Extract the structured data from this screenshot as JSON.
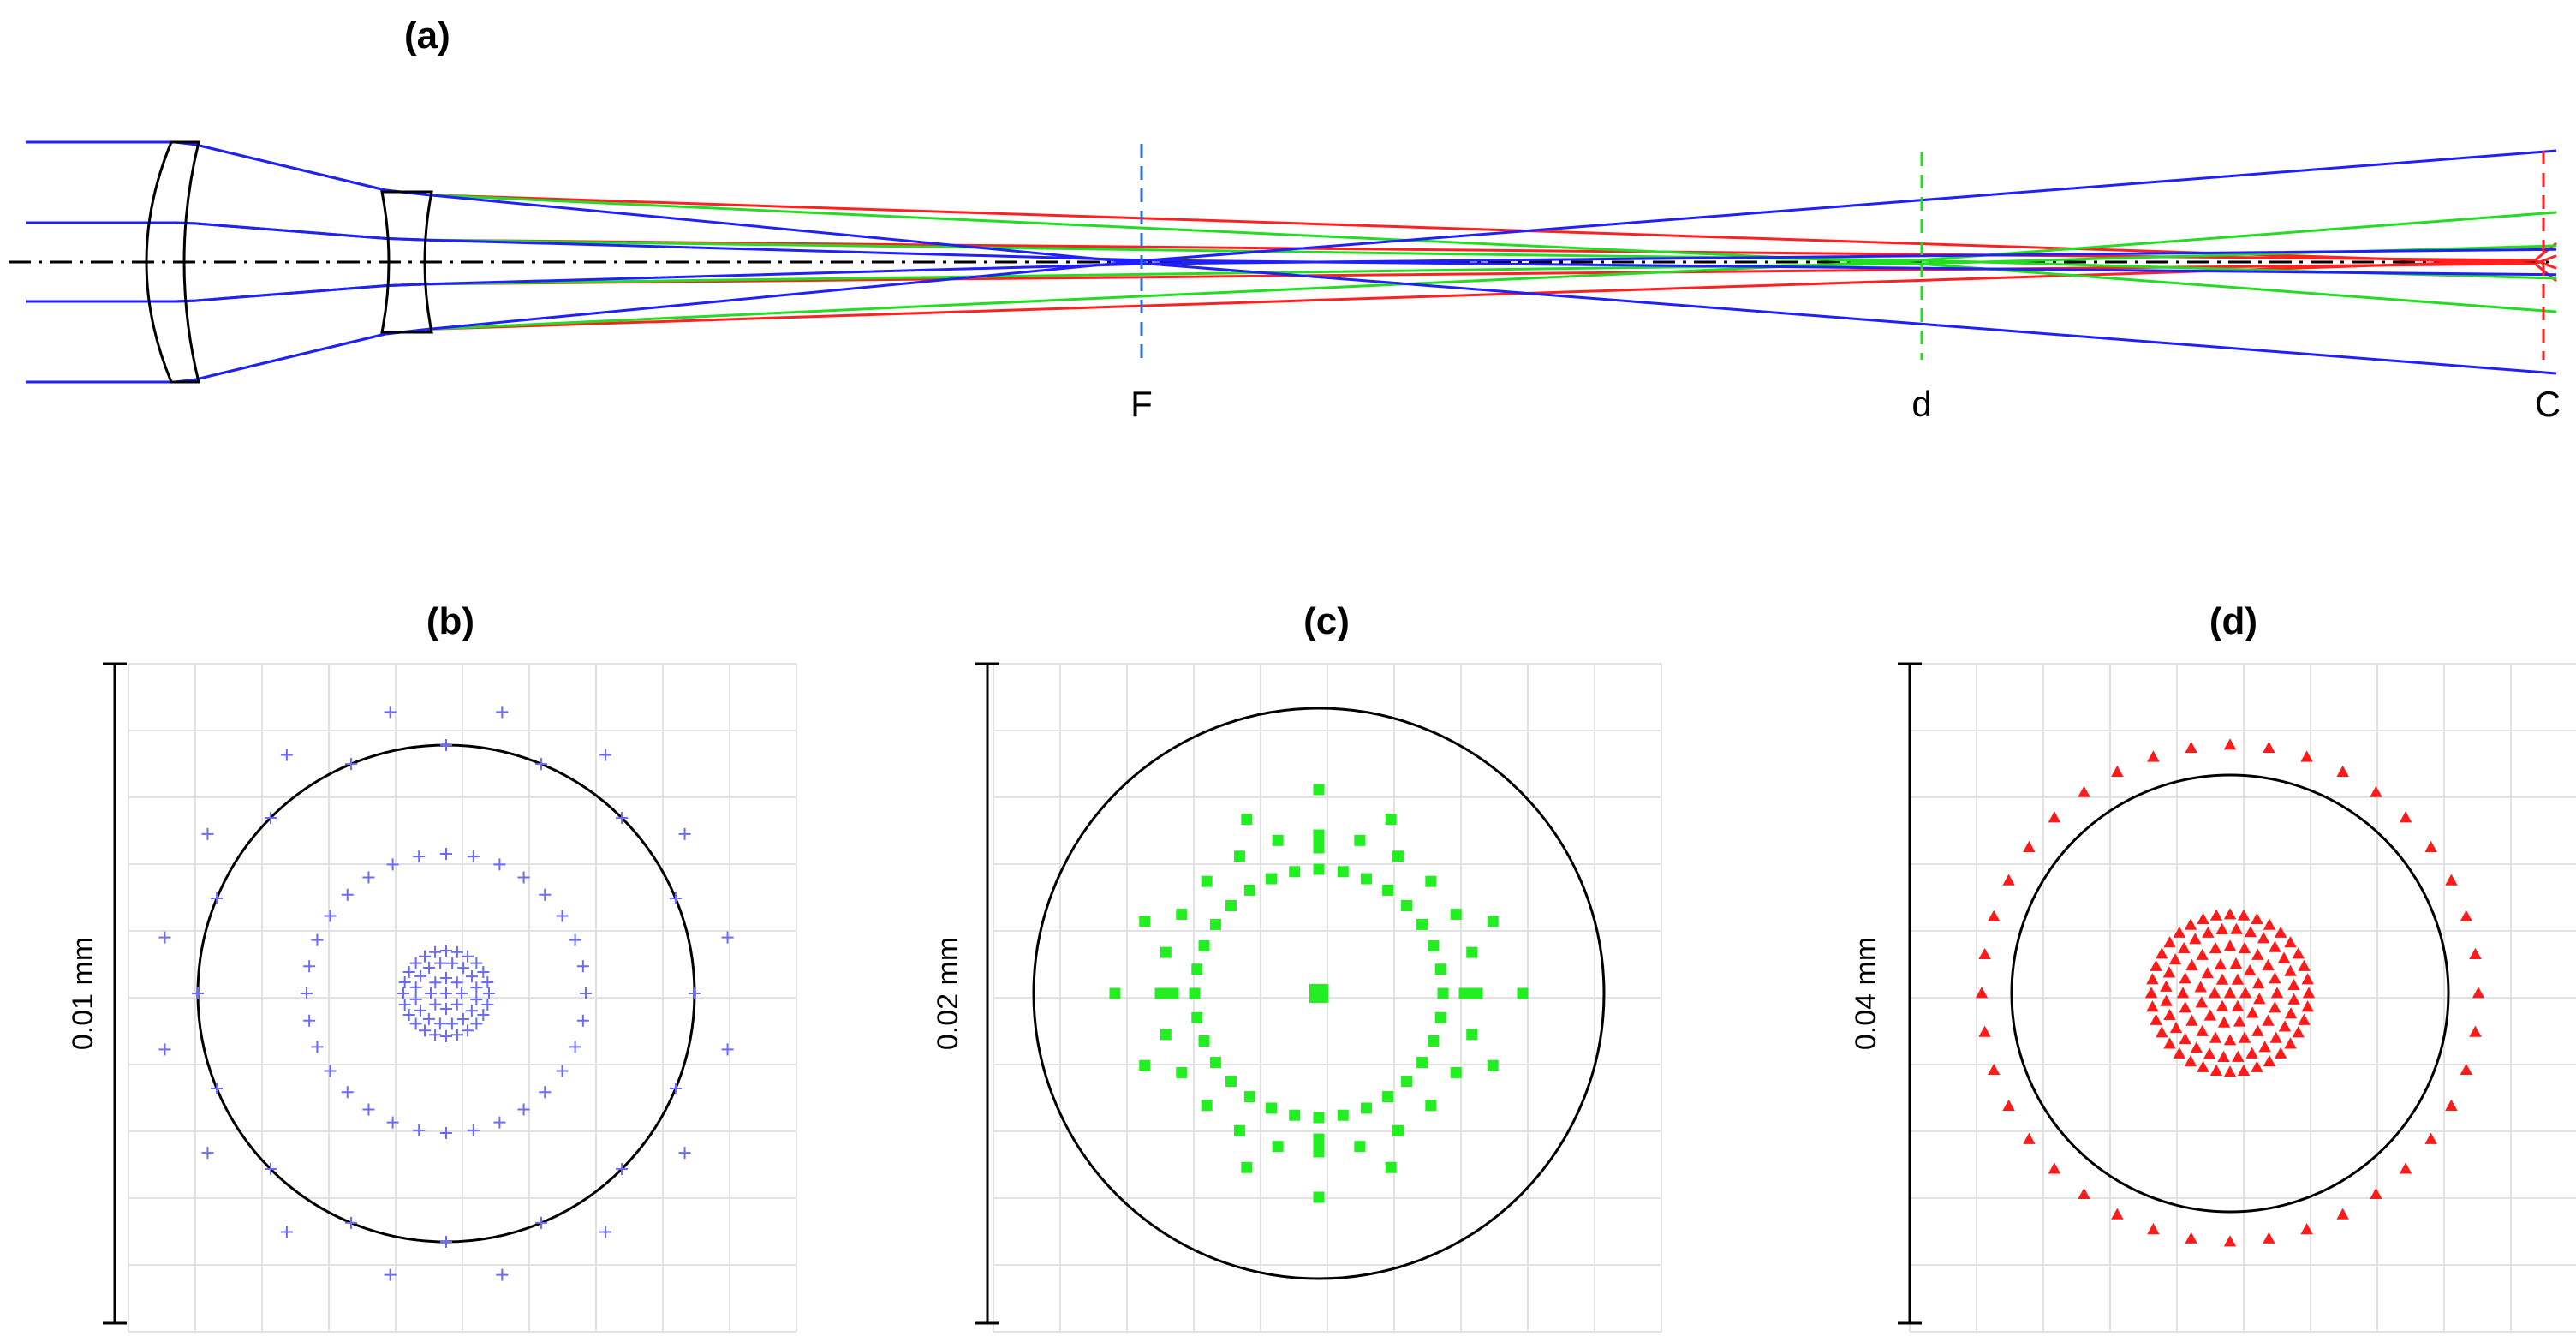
{
  "panels": {
    "a": {
      "label": "(a)",
      "planes": {
        "F": "F",
        "d": "d",
        "C": "C"
      },
      "ray_colors": {
        "F": "#1f1fff",
        "d": "#22dd22",
        "C": "#ff2020"
      },
      "plane_colors": {
        "F": "#2b6fd6",
        "d": "#22dd22",
        "C": "#ff2020"
      }
    },
    "b": {
      "label": "(b)",
      "scale": "0.01 mm",
      "color": "#6a6aff",
      "marker": "plus"
    },
    "c": {
      "label": "(c)",
      "scale": "0.02 mm",
      "color": "#22ee22",
      "marker": "square"
    },
    "d": {
      "label": "(d)",
      "scale": "0.04 mm",
      "color": "#ff1a1a",
      "marker": "triangle"
    }
  },
  "icons": {
    "lens1": "convex-lens-icon",
    "lens2": "concave-lens-icon"
  }
}
